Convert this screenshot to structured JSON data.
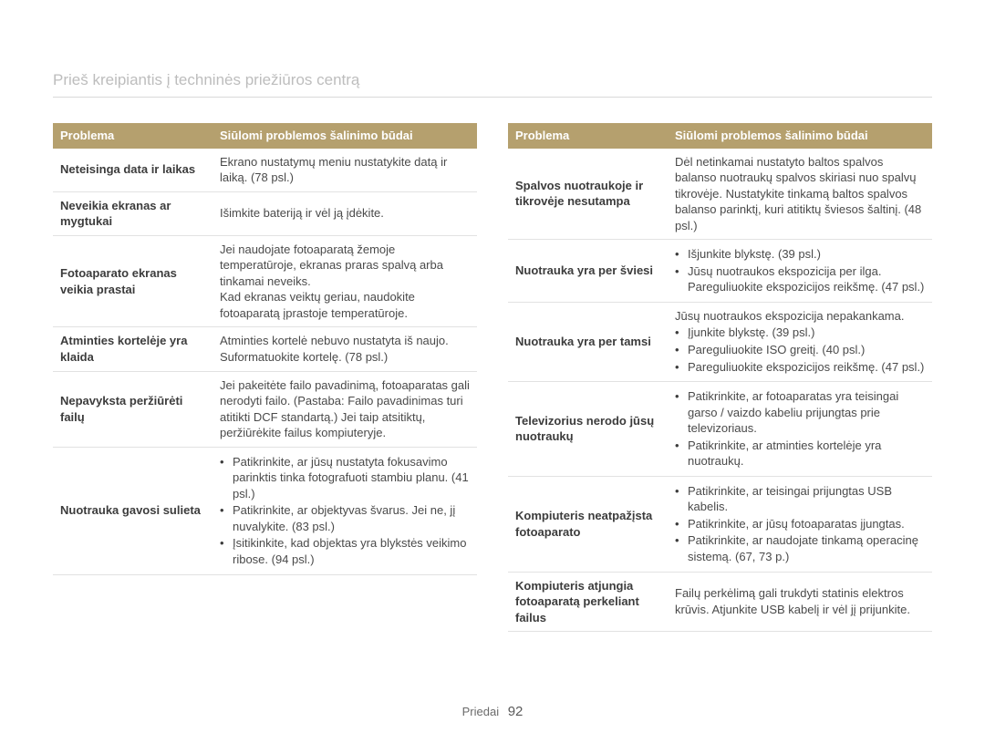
{
  "page_title": "Prieš kreipiantis į techninės priežiūros centrą",
  "header": {
    "col_problem": "Problema",
    "col_solution": "Siūlomi problemos šalinimo būdai"
  },
  "colors": {
    "header_bg": "#b5a06e",
    "header_text": "#ffffff",
    "title_text": "#bdbdbd",
    "row_border": "#e2e2e2",
    "body_text": "#4a4a4a"
  },
  "left_table": [
    {
      "problem": "Neteisinga data ir laikas",
      "solution_text": "Ekrano nustatymų meniu nustatykite datą ir laiką. (78 psl.)"
    },
    {
      "problem": "Neveikia ekranas ar mygtukai",
      "solution_text": "Išimkite bateriją ir vėl ją įdėkite."
    },
    {
      "problem": "Fotoaparato ekranas veikia prastai",
      "solution_text": "Jei naudojate fotoaparatą žemoje temperatūroje, ekranas praras spalvą arba tinkamai neveiks.\nKad ekranas veiktų geriau, naudokite fotoaparatą įprastoje temperatūroje."
    },
    {
      "problem": "Atminties kortelėje yra klaida",
      "solution_text": "Atminties kortelė nebuvo nustatyta iš naujo. Suformatuokite kortelę. (78 psl.)"
    },
    {
      "problem": "Nepavyksta peržiūrėti failų",
      "solution_text": "Jei pakeitėte failo pavadinimą, fotoaparatas gali nerodyti failo. (Pastaba: Failo pavadinimas turi atitikti DCF standartą.) Jei taip atsitiktų, peržiūrėkite failus kompiuteryje."
    },
    {
      "problem": "Nuotrauka gavosi sulieta",
      "solution_bullets": [
        "Patikrinkite, ar jūsų nustatyta fokusavimo parinktis tinka fotografuoti stambiu planu. (41 psl.)",
        "Patikrinkite, ar objektyvas švarus. Jei ne, jį nuvalykite. (83 psl.)",
        "Įsitikinkite, kad objektas yra blykstės veikimo ribose. (94 psl.)"
      ]
    }
  ],
  "right_table": [
    {
      "problem": "Spalvos nuotraukoje ir tikrovėje nesutampa",
      "solution_text": "Dėl netinkamai nustatyto baltos spalvos balanso nuotraukų spalvos skiriasi nuo spalvų tikrovėje. Nustatykite tinkamą baltos spalvos balanso parinktį, kuri atitiktų šviesos šaltinį. (48 psl.)"
    },
    {
      "problem": "Nuotrauka yra per šviesi",
      "solution_bullets": [
        "Išjunkite blykstę. (39 psl.)",
        "Jūsų nuotraukos ekspozicija per ilga. Pareguliuokite ekspozicijos reikšmę. (47 psl.)"
      ]
    },
    {
      "problem": "Nuotrauka yra per tamsi",
      "solution_intro": "Jūsų nuotraukos ekspozicija nepakankama.",
      "solution_bullets": [
        "Įjunkite blykstę. (39 psl.)",
        "Pareguliuokite ISO greitį. (40 psl.)",
        "Pareguliuokite ekspozicijos reikšmę. (47 psl.)"
      ]
    },
    {
      "problem": "Televizorius nerodo jūsų nuotraukų",
      "solution_bullets": [
        "Patikrinkite, ar fotoaparatas yra teisingai garso / vaizdo kabeliu prijungtas prie televizoriaus.",
        "Patikrinkite, ar atminties kortelėje yra nuotraukų."
      ]
    },
    {
      "problem": "Kompiuteris neatpažįsta fotoaparato",
      "solution_bullets": [
        "Patikrinkite, ar teisingai prijungtas USB kabelis.",
        "Patikrinkite, ar jūsų fotoaparatas įjungtas.",
        "Patikrinkite, ar naudojate tinkamą operacinę sistemą. (67, 73 p.)"
      ]
    },
    {
      "problem": "Kompiuteris atjungia fotoaparatą perkeliant failus",
      "solution_text": "Failų perkėlimą gali trukdyti statinis elektros krūvis. Atjunkite USB kabelį ir vėl jį prijunkite."
    }
  ],
  "footer": {
    "section": "Priedai",
    "page_number": "92"
  }
}
